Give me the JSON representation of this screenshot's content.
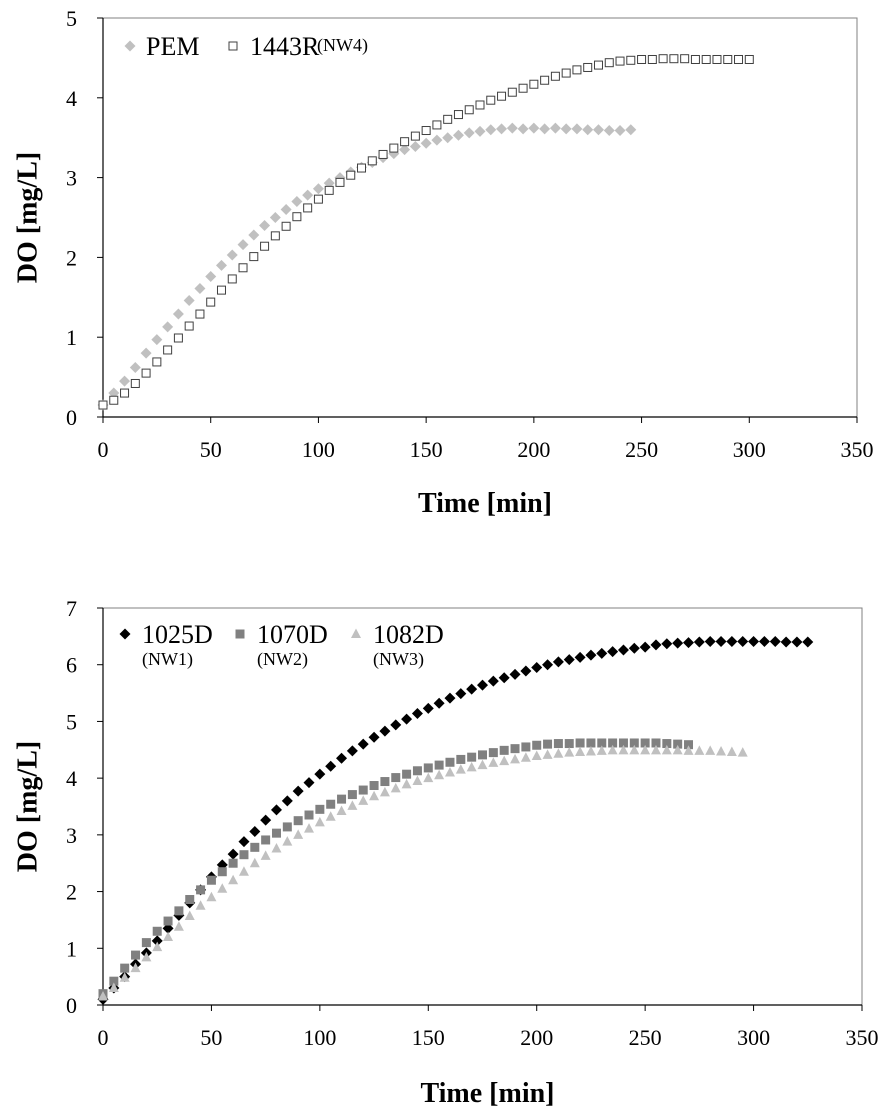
{
  "chart_data": [
    {
      "type": "scatter",
      "xlabel": "Time [min]",
      "ylabel": "DO [mg/L]",
      "xlim": [
        0,
        350
      ],
      "ylim": [
        0,
        5
      ],
      "xticks": [
        0,
        50,
        100,
        150,
        200,
        250,
        300,
        350
      ],
      "yticks": [
        0,
        1,
        2,
        3,
        4,
        5
      ],
      "grid": false,
      "legend": "top-left",
      "series": [
        {
          "name": "PEM",
          "marker": "diamond",
          "color": "#c0c0c0",
          "x": [
            0,
            5,
            10,
            15,
            20,
            25,
            30,
            35,
            40,
            45,
            50,
            55,
            60,
            65,
            70,
            75,
            80,
            85,
            90,
            95,
            100,
            105,
            110,
            115,
            120,
            125,
            130,
            135,
            140,
            145,
            150,
            155,
            160,
            165,
            170,
            175,
            180,
            185,
            190,
            195,
            200,
            205,
            210,
            215,
            220,
            225,
            230,
            235,
            240,
            245
          ],
          "y": [
            0.15,
            0.3,
            0.45,
            0.62,
            0.8,
            0.97,
            1.13,
            1.29,
            1.46,
            1.61,
            1.76,
            1.9,
            2.03,
            2.16,
            2.28,
            2.4,
            2.5,
            2.6,
            2.7,
            2.78,
            2.86,
            2.93,
            3.0,
            3.07,
            3.13,
            3.19,
            3.25,
            3.3,
            3.35,
            3.39,
            3.43,
            3.47,
            3.5,
            3.53,
            3.56,
            3.58,
            3.6,
            3.61,
            3.62,
            3.61,
            3.62,
            3.61,
            3.62,
            3.61,
            3.61,
            3.6,
            3.6,
            3.59,
            3.59,
            3.6
          ]
        },
        {
          "name": "1443R",
          "subname": "(NW4)",
          "marker": "square-open",
          "color": "#404040",
          "x": [
            0,
            5,
            10,
            15,
            20,
            25,
            30,
            35,
            40,
            45,
            50,
            55,
            60,
            65,
            70,
            75,
            80,
            85,
            90,
            95,
            100,
            105,
            110,
            115,
            120,
            125,
            130,
            135,
            140,
            145,
            150,
            155,
            160,
            165,
            170,
            175,
            180,
            185,
            190,
            195,
            200,
            205,
            210,
            215,
            220,
            225,
            230,
            235,
            240,
            245,
            250,
            255,
            260,
            265,
            270,
            275,
            280,
            285,
            290,
            295,
            300
          ],
          "y": [
            0.15,
            0.21,
            0.3,
            0.42,
            0.55,
            0.69,
            0.84,
            0.99,
            1.14,
            1.29,
            1.44,
            1.59,
            1.73,
            1.87,
            2.01,
            2.14,
            2.27,
            2.39,
            2.51,
            2.62,
            2.73,
            2.84,
            2.94,
            3.03,
            3.12,
            3.21,
            3.29,
            3.37,
            3.45,
            3.52,
            3.59,
            3.66,
            3.73,
            3.79,
            3.85,
            3.91,
            3.97,
            4.02,
            4.07,
            4.12,
            4.17,
            4.22,
            4.27,
            4.31,
            4.35,
            4.38,
            4.41,
            4.44,
            4.46,
            4.47,
            4.48,
            4.48,
            4.49,
            4.49,
            4.49,
            4.48,
            4.48,
            4.48,
            4.48,
            4.48,
            4.48
          ]
        }
      ]
    },
    {
      "type": "scatter",
      "xlabel": "Time [min]",
      "ylabel": "DO [mg/L]",
      "xlim": [
        0,
        350
      ],
      "ylim": [
        0,
        7
      ],
      "xticks": [
        0,
        50,
        100,
        150,
        200,
        250,
        300,
        350
      ],
      "yticks": [
        0,
        1,
        2,
        3,
        4,
        5,
        6,
        7
      ],
      "grid": false,
      "legend": "top-left",
      "series": [
        {
          "name": "1025D",
          "subname": "(NW1)",
          "marker": "diamond",
          "color": "#000000",
          "x": [
            0,
            5,
            10,
            15,
            20,
            25,
            30,
            35,
            40,
            45,
            50,
            55,
            60,
            65,
            70,
            75,
            80,
            85,
            90,
            95,
            100,
            105,
            110,
            115,
            120,
            125,
            130,
            135,
            140,
            145,
            150,
            155,
            160,
            165,
            170,
            175,
            180,
            185,
            190,
            195,
            200,
            205,
            210,
            215,
            220,
            225,
            230,
            235,
            240,
            245,
            250,
            255,
            260,
            265,
            270,
            275,
            280,
            285,
            290,
            295,
            300,
            305,
            310,
            315,
            320,
            325
          ],
          "y": [
            0.1,
            0.3,
            0.5,
            0.72,
            0.92,
            1.13,
            1.35,
            1.58,
            1.8,
            2.03,
            2.26,
            2.47,
            2.66,
            2.88,
            3.06,
            3.26,
            3.44,
            3.6,
            3.77,
            3.92,
            4.07,
            4.21,
            4.35,
            4.48,
            4.6,
            4.72,
            4.83,
            4.94,
            5.04,
            5.14,
            5.23,
            5.32,
            5.41,
            5.49,
            5.57,
            5.64,
            5.71,
            5.77,
            5.83,
            5.89,
            5.95,
            6.0,
            6.05,
            6.09,
            6.13,
            6.17,
            6.2,
            6.23,
            6.26,
            6.29,
            6.31,
            6.35,
            6.37,
            6.38,
            6.39,
            6.4,
            6.41,
            6.41,
            6.41,
            6.41,
            6.41,
            6.41,
            6.41,
            6.4,
            6.4,
            6.4
          ]
        },
        {
          "name": "1070D",
          "subname": "(NW2)",
          "marker": "square",
          "color": "#808080",
          "x": [
            0,
            5,
            10,
            15,
            20,
            25,
            30,
            35,
            40,
            45,
            50,
            55,
            60,
            65,
            70,
            75,
            80,
            85,
            90,
            95,
            100,
            105,
            110,
            115,
            120,
            125,
            130,
            135,
            140,
            145,
            150,
            155,
            160,
            165,
            170,
            175,
            180,
            185,
            190,
            195,
            200,
            205,
            210,
            215,
            220,
            225,
            230,
            235,
            240,
            245,
            250,
            255,
            260,
            265,
            270
          ],
          "y": [
            0.2,
            0.42,
            0.65,
            0.88,
            1.1,
            1.3,
            1.48,
            1.66,
            1.86,
            2.03,
            2.2,
            2.35,
            2.5,
            2.65,
            2.78,
            2.91,
            3.03,
            3.14,
            3.25,
            3.35,
            3.45,
            3.54,
            3.63,
            3.71,
            3.79,
            3.87,
            3.94,
            4.01,
            4.07,
            4.13,
            4.18,
            4.23,
            4.28,
            4.33,
            4.37,
            4.41,
            4.45,
            4.49,
            4.52,
            4.55,
            4.58,
            4.6,
            4.61,
            4.61,
            4.62,
            4.62,
            4.62,
            4.62,
            4.62,
            4.62,
            4.62,
            4.62,
            4.61,
            4.6,
            4.59
          ]
        },
        {
          "name": "1082D",
          "subname": "(NW3)",
          "marker": "triangle",
          "color": "#c0c0c0",
          "x": [
            0,
            5,
            10,
            15,
            20,
            25,
            30,
            35,
            40,
            45,
            50,
            55,
            60,
            65,
            70,
            75,
            80,
            85,
            90,
            95,
            100,
            105,
            110,
            115,
            120,
            125,
            130,
            135,
            140,
            145,
            150,
            155,
            160,
            165,
            170,
            175,
            180,
            185,
            190,
            195,
            200,
            205,
            210,
            215,
            220,
            225,
            230,
            235,
            240,
            245,
            250,
            255,
            260,
            265,
            270,
            275,
            280,
            285,
            290,
            295
          ],
          "y": [
            0.15,
            0.3,
            0.48,
            0.65,
            0.84,
            1.02,
            1.2,
            1.38,
            1.57,
            1.75,
            1.9,
            2.05,
            2.2,
            2.35,
            2.5,
            2.63,
            2.76,
            2.88,
            3.0,
            3.11,
            3.22,
            3.32,
            3.42,
            3.51,
            3.6,
            3.68,
            3.75,
            3.82,
            3.89,
            3.95,
            4.0,
            4.05,
            4.1,
            4.15,
            4.19,
            4.23,
            4.27,
            4.3,
            4.33,
            4.36,
            4.39,
            4.41,
            4.43,
            4.45,
            4.46,
            4.47,
            4.48,
            4.49,
            4.49,
            4.49,
            4.49,
            4.49,
            4.49,
            4.49,
            4.48,
            4.48,
            4.48,
            4.47,
            4.46,
            4.45
          ]
        }
      ]
    }
  ]
}
